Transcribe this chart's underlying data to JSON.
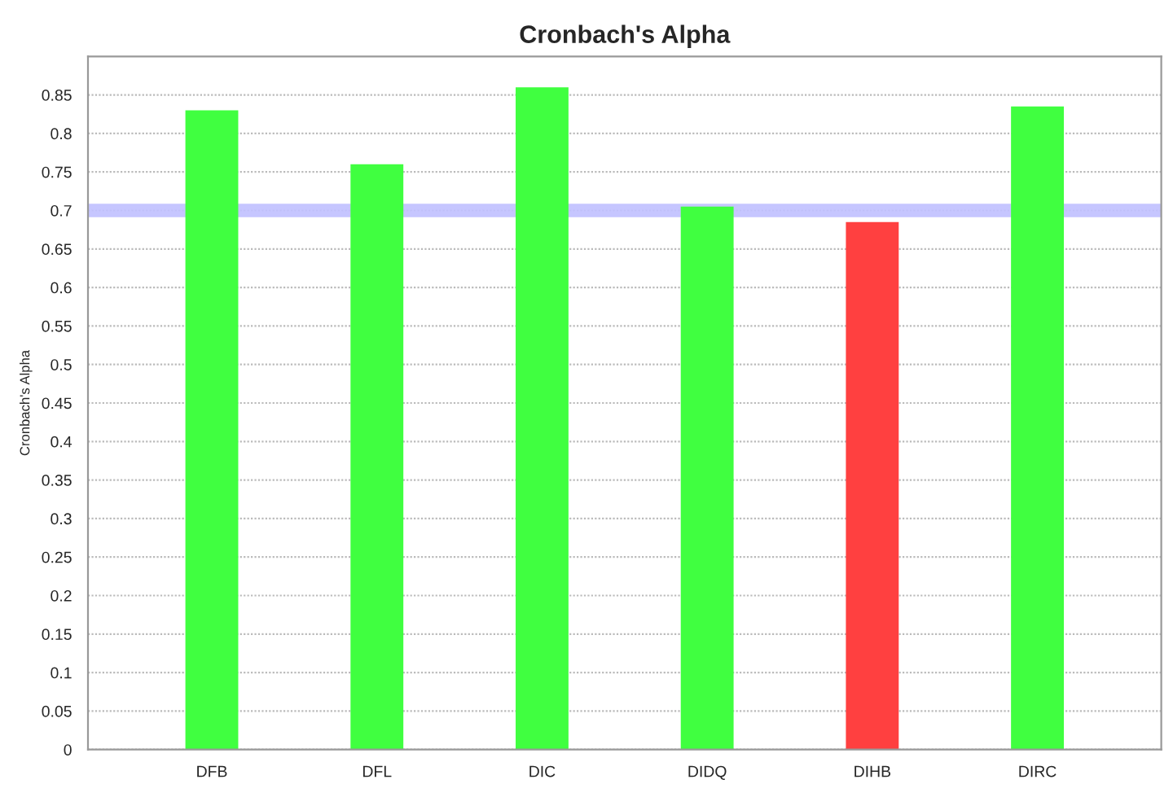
{
  "chart_data": {
    "type": "bar",
    "title": "Cronbach's Alpha",
    "ylabel": "Cronbach's Alpha",
    "categories": [
      "DFB",
      "DFL",
      "DIC",
      "DIDQ",
      "DIHB",
      "DIRC"
    ],
    "values": [
      0.83,
      0.76,
      0.86,
      0.705,
      0.685,
      0.835
    ],
    "colors": [
      "#40ff40",
      "#40ff40",
      "#40ff40",
      "#40ff40",
      "#ff4040",
      "#40ff40"
    ],
    "ylim": [
      0,
      0.9
    ],
    "yticks": [
      0,
      0.05,
      0.1,
      0.15,
      0.2,
      0.25,
      0.3,
      0.35,
      0.4,
      0.45,
      0.5,
      0.55,
      0.6,
      0.65,
      0.7,
      0.75,
      0.8,
      0.85
    ],
    "grid": "y",
    "ref_lines": [
      {
        "axis": "y",
        "value": 0.7,
        "color": "#c0c0ff"
      }
    ]
  }
}
